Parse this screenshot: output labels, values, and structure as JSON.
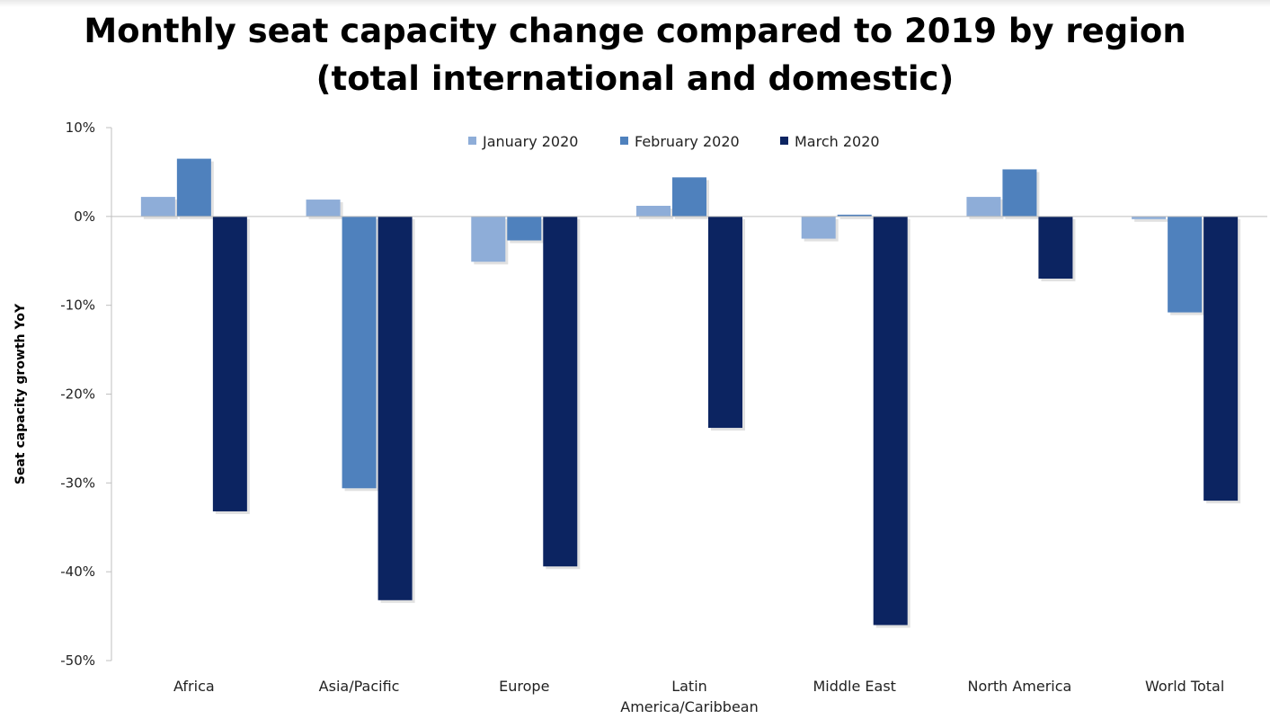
{
  "chart_data": {
    "type": "bar",
    "title_lines": [
      "Monthly seat capacity change compared to 2019 by region",
      "(total international and domestic)"
    ],
    "ylabel": "Seat capacity growth YoY",
    "xlabel": "",
    "ylim": [
      -50,
      10
    ],
    "yticks": [
      10,
      0,
      -10,
      -20,
      -30,
      -40,
      -50
    ],
    "ytick_labels": [
      "10%",
      "0%",
      "-10%",
      "-20%",
      "-30%",
      "-40%",
      "-50%"
    ],
    "value_unit": "%",
    "categories": [
      [
        "Africa"
      ],
      [
        "Asia/Pacific"
      ],
      [
        "Europe"
      ],
      [
        "Latin",
        "America/Caribbean"
      ],
      [
        "Middle East"
      ],
      [
        "North America"
      ],
      [
        "World Total"
      ]
    ],
    "series": [
      {
        "name": "January 2020",
        "color": "#8EADD8",
        "values": [
          2.2,
          1.9,
          -5.1,
          1.2,
          -2.5,
          2.2,
          -0.3
        ]
      },
      {
        "name": "February 2020",
        "color": "#4F81BD",
        "values": [
          6.5,
          -30.6,
          -2.7,
          4.4,
          0.2,
          5.3,
          -10.8
        ]
      },
      {
        "name": "March 2020",
        "color": "#0C2461",
        "values": [
          -33.2,
          -43.2,
          -39.4,
          -23.8,
          -46.0,
          -7.0,
          -32.0
        ]
      }
    ],
    "grid": false,
    "legend_position": "top-center"
  }
}
